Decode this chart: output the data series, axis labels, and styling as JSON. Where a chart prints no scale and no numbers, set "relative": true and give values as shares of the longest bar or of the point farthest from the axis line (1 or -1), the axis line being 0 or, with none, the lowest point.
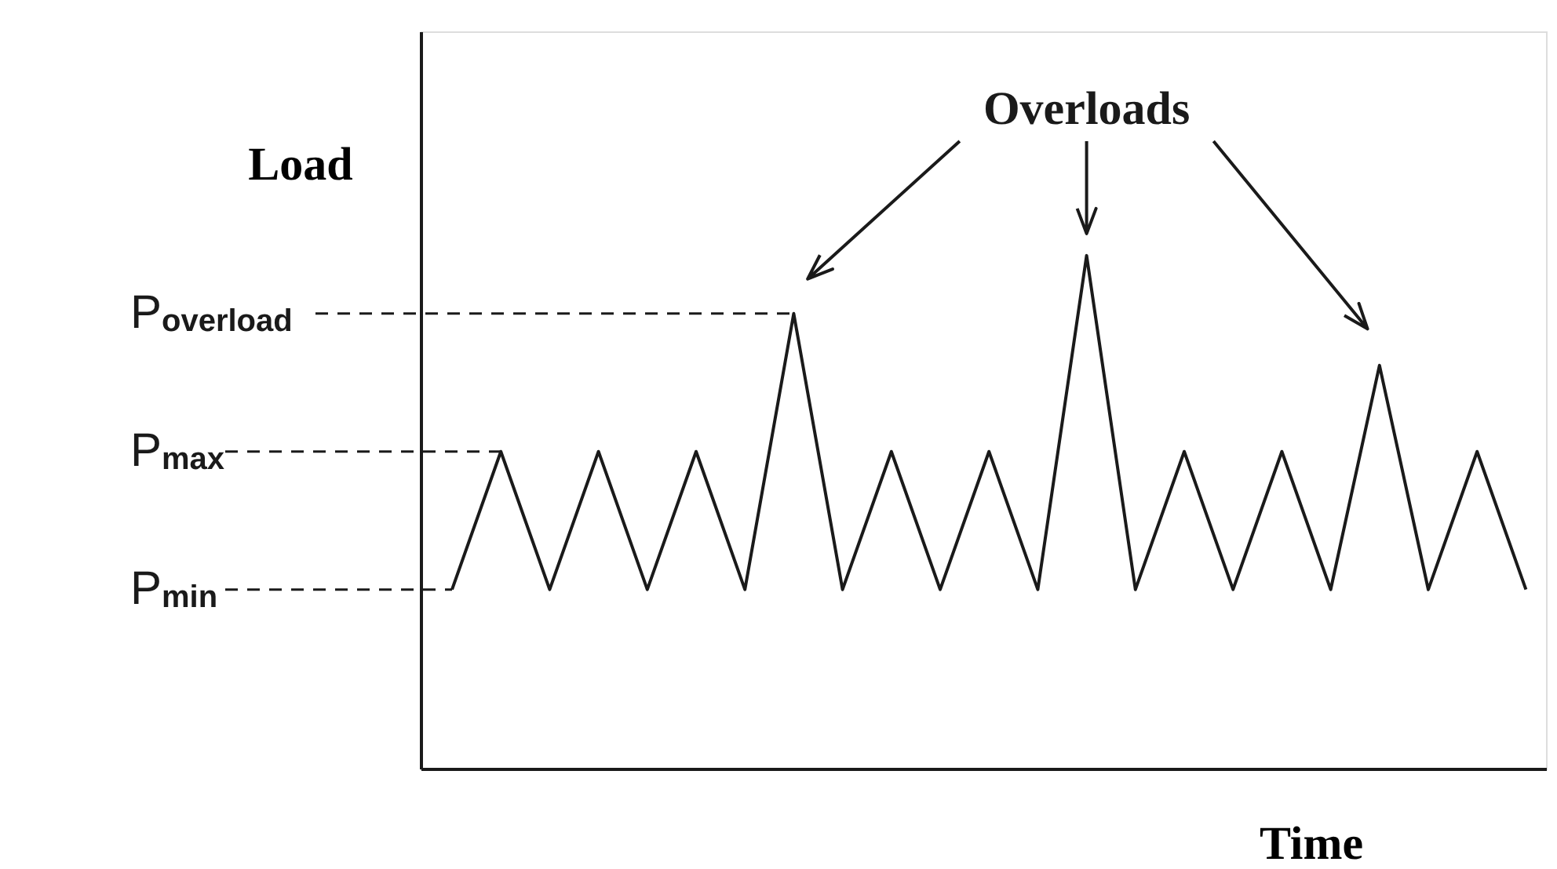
{
  "chart_data": {
    "type": "line",
    "relative": true,
    "xlabel": "Time",
    "ylabel": "Load",
    "categories": [
      null,
      null,
      null,
      null,
      null,
      null,
      null,
      null,
      null,
      null,
      null,
      null,
      null,
      null,
      null,
      null,
      null,
      null,
      null,
      null,
      null,
      null,
      null
    ],
    "series": [
      {
        "color": "#1a1a1a",
        "values": [
          0.349,
          0.618,
          0.349,
          0.618,
          0.349,
          0.618,
          0.349,
          0.887,
          0.349,
          0.618,
          0.349,
          0.618,
          0.349,
          1,
          0.349,
          0.618,
          0.349,
          0.618,
          0.349,
          0.786,
          0.349,
          0.618,
          0.349
        ]
      }
    ],
    "ref_lines": [
      {
        "axis": "y",
        "value": 0.349,
        "label": "P$_{min}$",
        "line_style": "dashed"
      },
      {
        "axis": "y",
        "value": 0.618,
        "label": "P$_{max}$",
        "line_style": "dashed"
      },
      {
        "axis": "y",
        "value": 0.887,
        "label": "P$_{overload}$",
        "line_style": "dashed"
      }
    ],
    "annotations": [
      "Overloads"
    ],
    "tick_labels": false,
    "grid": false,
    "marker": "none",
    "line_style": "solid"
  }
}
